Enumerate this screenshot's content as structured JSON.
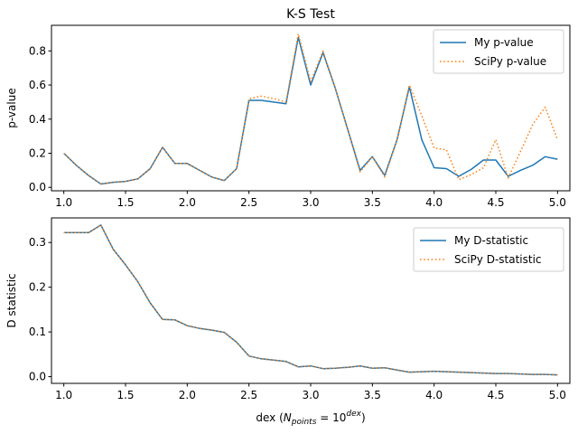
{
  "chart_data": [
    {
      "type": "line",
      "title": "K-S Test",
      "xlabel": "",
      "ylabel": "p-value",
      "xlim": [
        0.9,
        5.1
      ],
      "ylim": [
        -0.02,
        0.95
      ],
      "xticks": [
        "1.0",
        "1.5",
        "2.0",
        "2.5",
        "3.0",
        "3.5",
        "4.0",
        "4.5",
        "5.0"
      ],
      "yticks": [
        "0.0",
        "0.2",
        "0.4",
        "0.6",
        "0.8"
      ],
      "legend_position": "top-right",
      "grid": false,
      "x": [
        1.0,
        1.1,
        1.2,
        1.3,
        1.4,
        1.5,
        1.6,
        1.7,
        1.8,
        1.9,
        2.0,
        2.1,
        2.2,
        2.3,
        2.4,
        2.5,
        2.6,
        2.7,
        2.8,
        2.9,
        3.0,
        3.1,
        3.2,
        3.3,
        3.4,
        3.5,
        3.6,
        3.7,
        3.8,
        3.9,
        4.0,
        4.1,
        4.2,
        4.3,
        4.4,
        4.5,
        4.6,
        4.7,
        4.8,
        4.9,
        5.0
      ],
      "series": [
        {
          "name": "My p-value",
          "color": "#1f77b4",
          "style": "solid",
          "values": [
            0.2,
            0.13,
            0.07,
            0.02,
            0.03,
            0.035,
            0.05,
            0.11,
            0.235,
            0.14,
            0.14,
            0.1,
            0.06,
            0.04,
            0.11,
            0.51,
            0.51,
            0.5,
            0.49,
            0.88,
            0.6,
            0.79,
            0.58,
            0.34,
            0.1,
            0.18,
            0.07,
            0.28,
            0.59,
            0.28,
            0.115,
            0.11,
            0.065,
            0.105,
            0.16,
            0.16,
            0.065,
            0.1,
            0.13,
            0.18,
            0.165
          ]
        },
        {
          "name": "SciPy p-value",
          "color": "#ff7f0e",
          "style": "dotted",
          "values": [
            0.2,
            0.13,
            0.07,
            0.02,
            0.03,
            0.035,
            0.05,
            0.11,
            0.235,
            0.14,
            0.14,
            0.1,
            0.06,
            0.04,
            0.11,
            0.52,
            0.535,
            0.52,
            0.5,
            0.9,
            0.62,
            0.8,
            0.58,
            0.34,
            0.09,
            0.18,
            0.06,
            0.28,
            0.6,
            0.42,
            0.23,
            0.22,
            0.045,
            0.075,
            0.115,
            0.28,
            0.055,
            0.21,
            0.37,
            0.47,
            0.28
          ]
        }
      ]
    },
    {
      "type": "line",
      "title": "",
      "xlabel": "dex (N_points = 10^dex)",
      "ylabel": "D statistic",
      "xlim": [
        0.9,
        5.1
      ],
      "ylim": [
        -0.015,
        0.355
      ],
      "xticks": [
        "1.0",
        "1.5",
        "2.0",
        "2.5",
        "3.0",
        "3.5",
        "4.0",
        "4.5",
        "5.0"
      ],
      "yticks": [
        "0.0",
        "0.1",
        "0.2",
        "0.3"
      ],
      "legend_position": "top-right",
      "grid": false,
      "x": [
        1.0,
        1.1,
        1.2,
        1.3,
        1.4,
        1.5,
        1.6,
        1.7,
        1.8,
        1.9,
        2.0,
        2.1,
        2.2,
        2.3,
        2.4,
        2.5,
        2.6,
        2.7,
        2.8,
        2.9,
        3.0,
        3.1,
        3.2,
        3.3,
        3.4,
        3.5,
        3.6,
        3.7,
        3.8,
        3.9,
        4.0,
        4.1,
        4.2,
        4.3,
        4.4,
        4.5,
        4.6,
        4.7,
        4.8,
        4.9,
        5.0
      ],
      "series": [
        {
          "name": "My D-statistic",
          "color": "#1f77b4",
          "style": "solid",
          "values": [
            0.322,
            0.322,
            0.322,
            0.339,
            0.285,
            0.25,
            0.212,
            0.165,
            0.128,
            0.127,
            0.114,
            0.108,
            0.104,
            0.099,
            0.077,
            0.046,
            0.04,
            0.037,
            0.034,
            0.022,
            0.024,
            0.018,
            0.019,
            0.021,
            0.024,
            0.019,
            0.02,
            0.015,
            0.01,
            0.011,
            0.012,
            0.011,
            0.01,
            0.009,
            0.008,
            0.007,
            0.007,
            0.006,
            0.005,
            0.005,
            0.004
          ]
        },
        {
          "name": "SciPy D-statistic",
          "color": "#ff7f0e",
          "style": "dotted",
          "values": [
            0.322,
            0.322,
            0.322,
            0.339,
            0.285,
            0.25,
            0.212,
            0.165,
            0.128,
            0.127,
            0.114,
            0.108,
            0.104,
            0.099,
            0.077,
            0.046,
            0.04,
            0.037,
            0.034,
            0.022,
            0.024,
            0.018,
            0.019,
            0.021,
            0.024,
            0.019,
            0.02,
            0.015,
            0.01,
            0.011,
            0.012,
            0.011,
            0.01,
            0.009,
            0.008,
            0.007,
            0.007,
            0.006,
            0.005,
            0.005,
            0.004
          ]
        }
      ]
    }
  ]
}
